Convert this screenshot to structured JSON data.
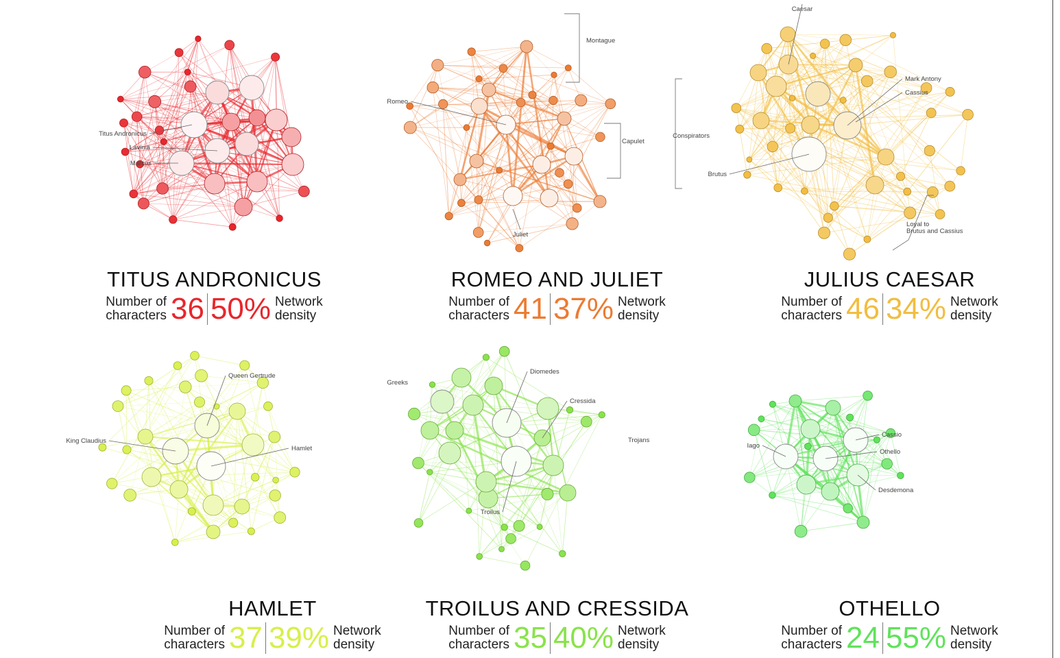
{
  "labels": {
    "num_chars_l1": "Number of",
    "num_chars_l2": "characters",
    "density_l1": "Network",
    "density_l2": "density"
  },
  "plays": [
    {
      "title": "TITUS ANDRONICUS",
      "characters": "36",
      "density": "50%",
      "color": "#e8262c",
      "named": [
        "Titus Andronicus",
        "Lavinia",
        "Marcus"
      ],
      "groups": []
    },
    {
      "title": "ROMEO AND JULIET",
      "characters": "41",
      "density": "37%",
      "color": "#ec7b32",
      "named": [
        "Romeo",
        "Juliet"
      ],
      "groups": [
        "Montague",
        "Capulet"
      ]
    },
    {
      "title": "JULIUS CAESAR",
      "characters": "46",
      "density": "34%",
      "color": "#f2bd3f",
      "named": [
        "Caesar",
        "Mark Antony",
        "Cassius",
        "Brutus"
      ],
      "groups": [
        "Conspirators",
        "Loyal to",
        "Brutus and Cassius"
      ]
    },
    {
      "title": "HAMLET",
      "characters": "37",
      "density": "39%",
      "color": "#d8ef4a",
      "named": [
        "Queen Gertrude",
        "King Claudius",
        "Hamlet"
      ],
      "groups": []
    },
    {
      "title": "TROILUS AND CRESSIDA",
      "characters": "35",
      "density": "40%",
      "color": "#89e34a",
      "named": [
        "Diomedes",
        "Cressida",
        "Troilus"
      ],
      "groups": [
        "Greeks",
        "Trojans"
      ]
    },
    {
      "title": "OTHELLO",
      "characters": "24",
      "density": "55%",
      "color": "#5fe35a",
      "named": [
        "Cassio",
        "Othello",
        "Iago",
        "Desdemona"
      ],
      "groups": []
    }
  ]
}
